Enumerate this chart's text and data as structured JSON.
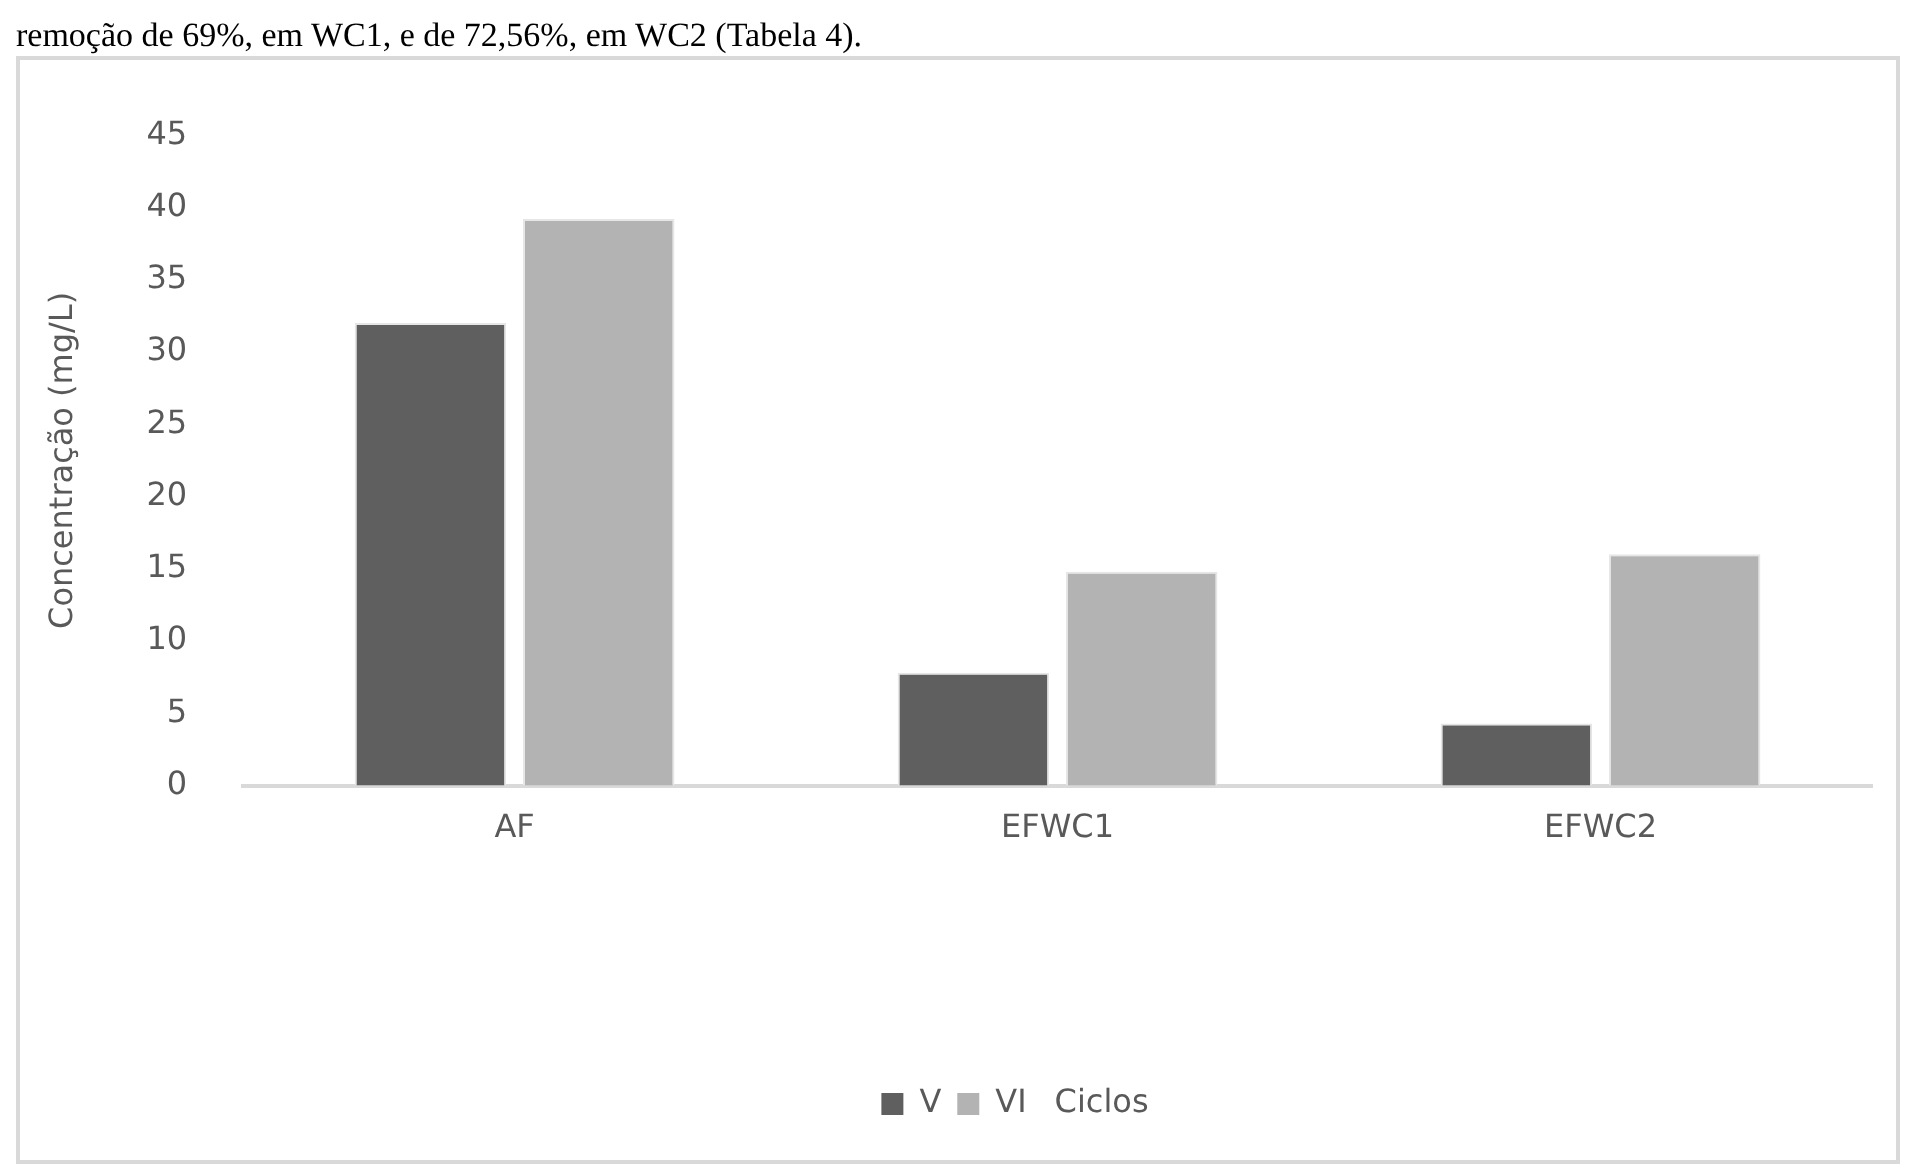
{
  "chart_data": {
    "type": "bar",
    "ylabel": "Concentração (mg/L)",
    "legend_title": "Ciclos",
    "annotations": [
      "remoção de 69%, em WC1, e de 72,56%, em WC2 (Tabela 4)."
    ],
    "categories": [
      "AF",
      "EFWC1",
      "EFWC2"
    ],
    "series": [
      {
        "name": "V",
        "color": "#5f5f5f",
        "values": [
          32.0,
          7.8,
          4.3
        ]
      },
      {
        "name": "VI",
        "color": "#b3b3b3",
        "values": [
          39.2,
          14.8,
          16.0
        ]
      }
    ],
    "ylim": [
      0,
      45
    ],
    "yticks": [
      0,
      5,
      10,
      15,
      20,
      25,
      30,
      35,
      40,
      45
    ],
    "grid": false,
    "legend": "bottom"
  }
}
